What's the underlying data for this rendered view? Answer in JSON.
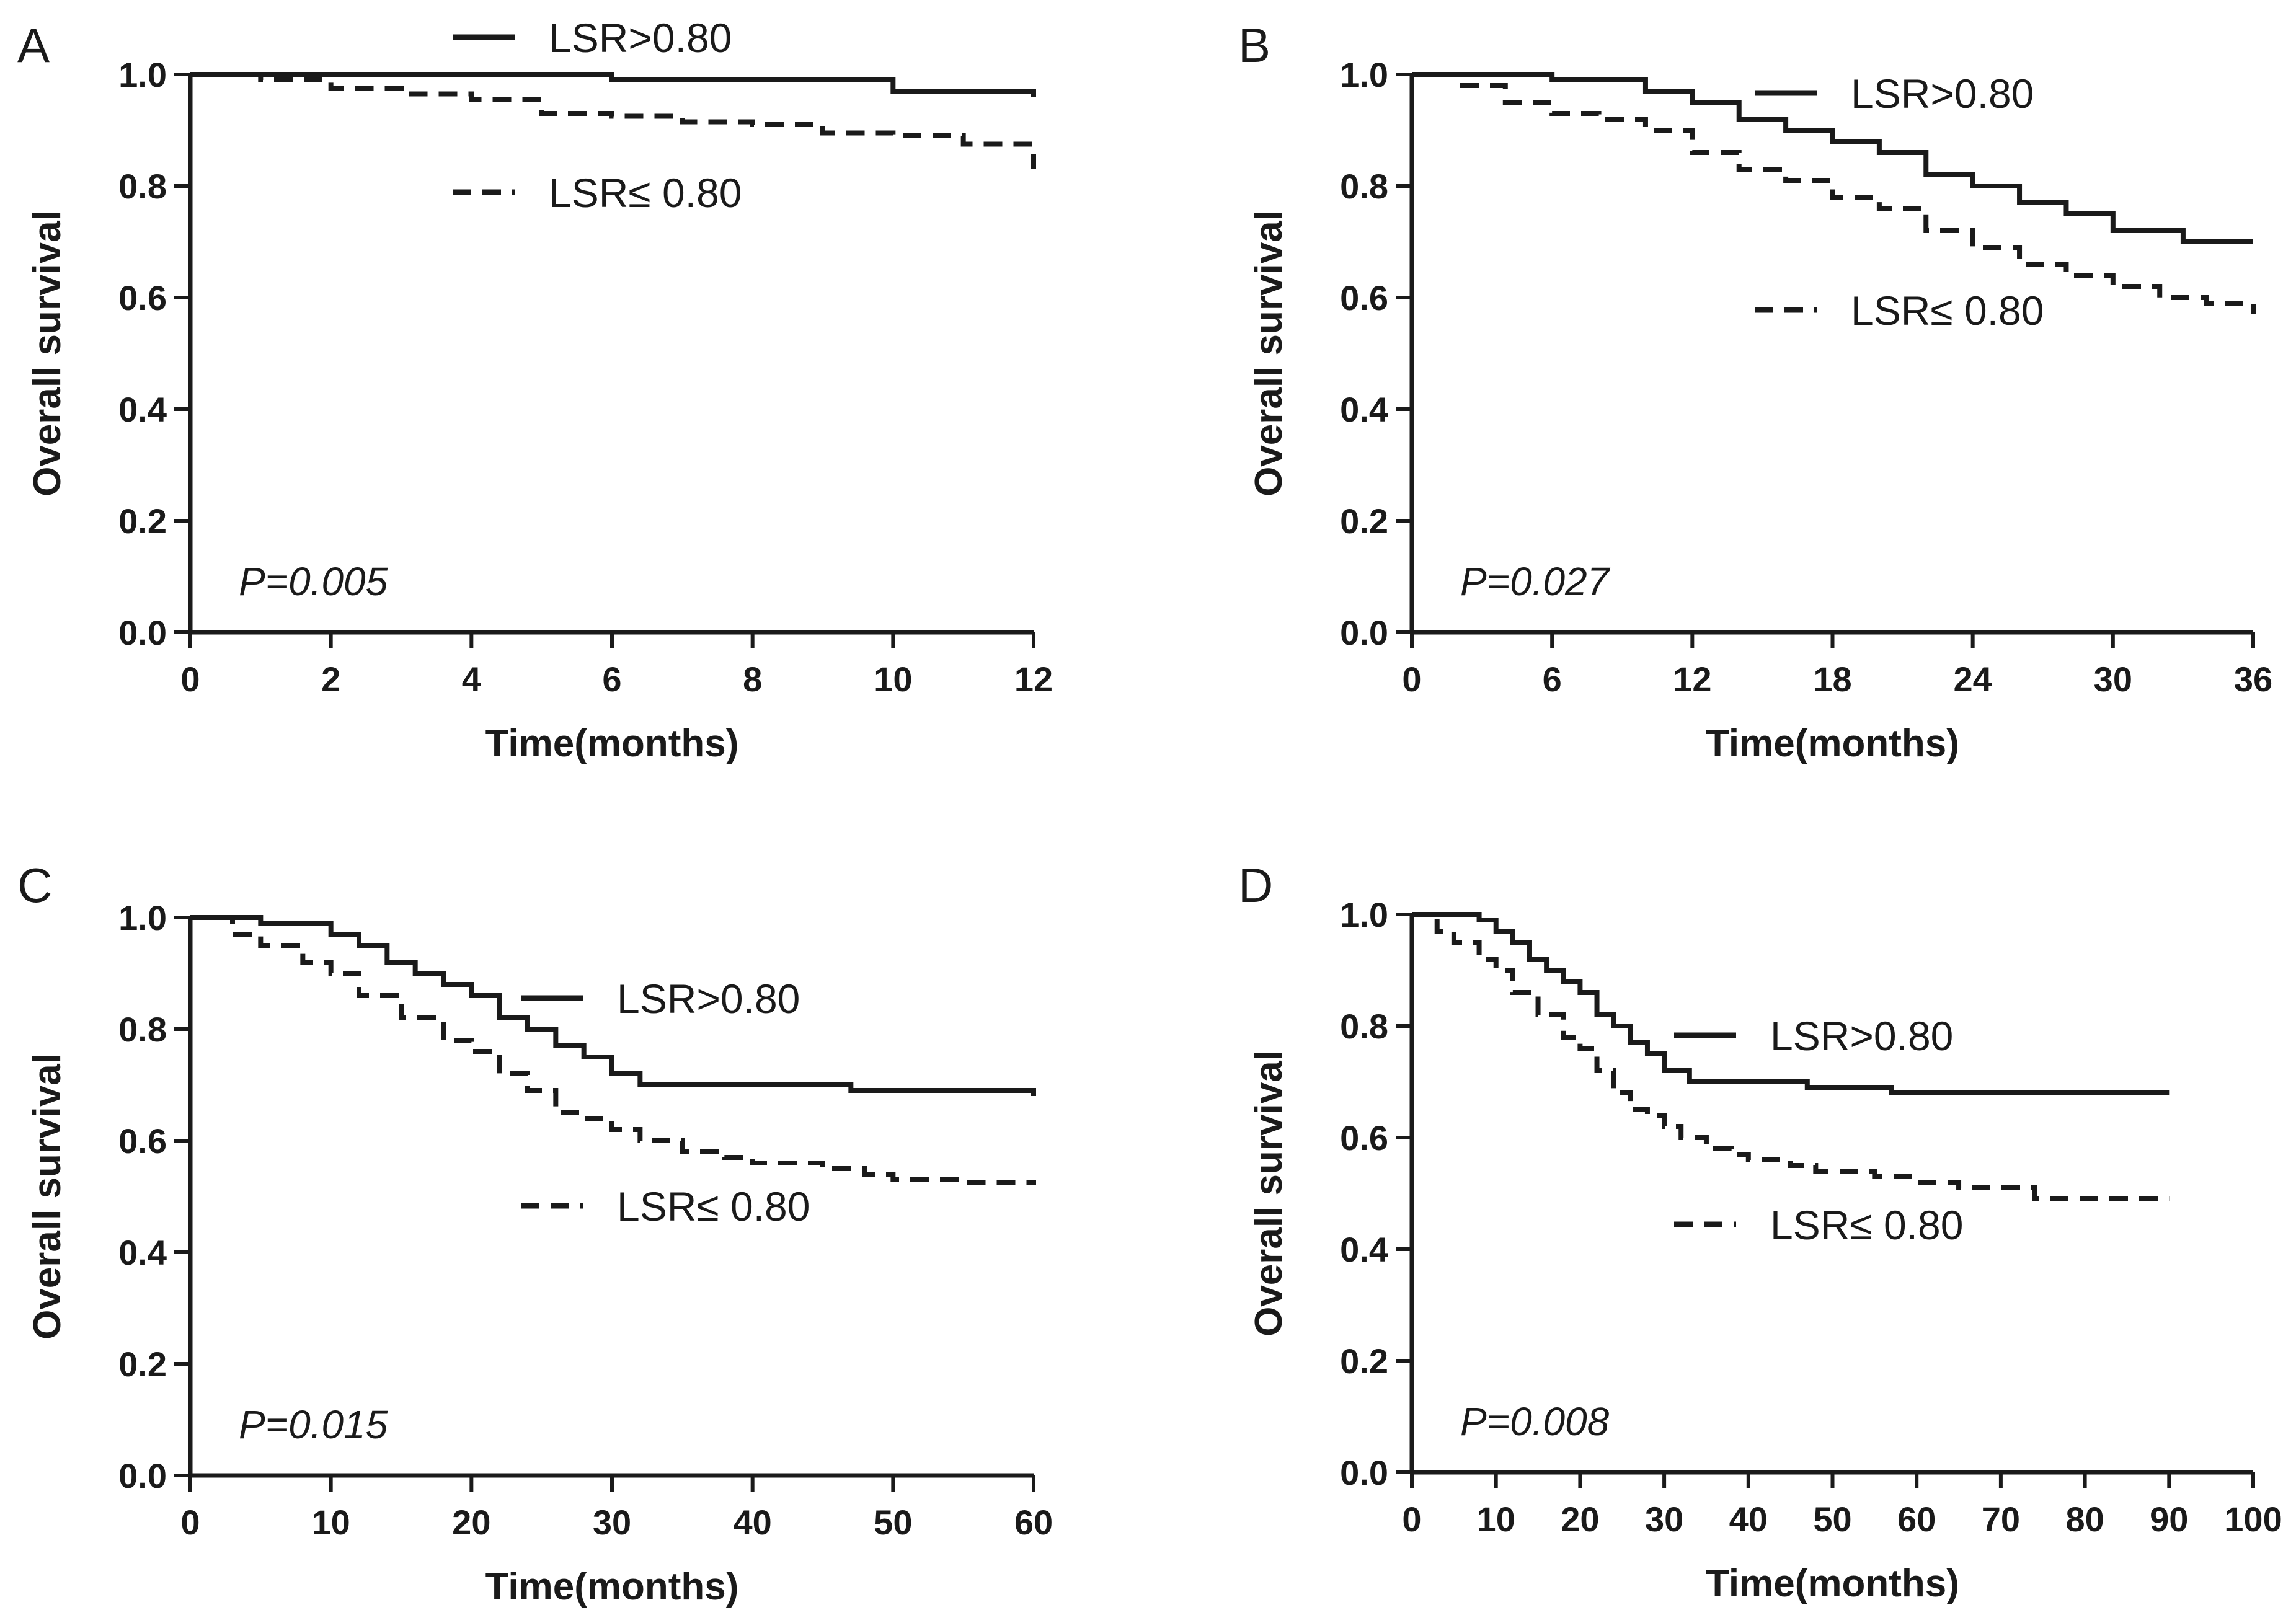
{
  "figure": {
    "colors": {
      "ink": "#1a1a1a",
      "background": "#ffffff"
    }
  },
  "chart_data": [
    {
      "type": "line",
      "panel_label": "A",
      "title": "",
      "xlabel": "Time(months)",
      "ylabel": "Overall survival",
      "xlim": [
        0,
        12
      ],
      "ylim": [
        0,
        1.0
      ],
      "xticks": [
        "0",
        "2",
        "4",
        "6",
        "8",
        "10",
        "12"
      ],
      "yticks": [
        "0.0",
        "0.2",
        "0.4",
        "0.6",
        "0.8",
        "1.0"
      ],
      "p_value": "P=0.005",
      "legend_position": "top-center",
      "series": [
        {
          "name": "LSR>0.80",
          "style": "solid",
          "x": [
            0,
            6,
            10,
            12
          ],
          "y": [
            1.0,
            0.99,
            0.97,
            0.96
          ]
        },
        {
          "name": "LSR≤ 0.80",
          "style": "dashed",
          "x": [
            0,
            1,
            2,
            3,
            4,
            5,
            6,
            7,
            8,
            9,
            10,
            11,
            12
          ],
          "y": [
            1.0,
            0.99,
            0.975,
            0.965,
            0.955,
            0.93,
            0.925,
            0.915,
            0.91,
            0.895,
            0.89,
            0.875,
            0.83
          ]
        }
      ]
    },
    {
      "type": "line",
      "panel_label": "B",
      "title": "",
      "xlabel": "Time(months)",
      "ylabel": "Overall survival",
      "xlim": [
        0,
        36
      ],
      "ylim": [
        0,
        1.0
      ],
      "xticks": [
        "0",
        "6",
        "12",
        "18",
        "24",
        "30",
        "36"
      ],
      "yticks": [
        "0.0",
        "0.2",
        "0.4",
        "0.6",
        "0.8",
        "1.0"
      ],
      "p_value": "P=0.027",
      "legend_position": "top-right",
      "series": [
        {
          "name": "LSR>0.80",
          "style": "solid",
          "x": [
            0,
            6,
            10,
            12,
            14,
            16,
            18,
            20,
            22,
            24,
            26,
            28,
            30,
            33,
            36
          ],
          "y": [
            1.0,
            0.99,
            0.97,
            0.95,
            0.92,
            0.9,
            0.88,
            0.86,
            0.82,
            0.8,
            0.77,
            0.75,
            0.72,
            0.7,
            0.7
          ]
        },
        {
          "name": "LSR≤ 0.80",
          "style": "dashed",
          "x": [
            0,
            2,
            4,
            6,
            8,
            10,
            12,
            14,
            16,
            18,
            20,
            22,
            24,
            26,
            28,
            30,
            32,
            34,
            36
          ],
          "y": [
            1.0,
            0.98,
            0.95,
            0.93,
            0.92,
            0.9,
            0.86,
            0.83,
            0.81,
            0.78,
            0.76,
            0.72,
            0.69,
            0.66,
            0.64,
            0.62,
            0.6,
            0.59,
            0.57
          ]
        }
      ]
    },
    {
      "type": "line",
      "panel_label": "C",
      "title": "",
      "xlabel": "Time(months)",
      "ylabel": "Overall survival",
      "xlim": [
        0,
        60
      ],
      "ylim": [
        0,
        1.0
      ],
      "xticks": [
        "0",
        "10",
        "20",
        "30",
        "40",
        "50",
        "60"
      ],
      "yticks": [
        "0.0",
        "0.2",
        "0.4",
        "0.6",
        "0.8",
        "1.0"
      ],
      "p_value": "P=0.015",
      "legend_position": "center-right",
      "series": [
        {
          "name": "LSR>0.80",
          "style": "solid",
          "x": [
            0,
            5,
            10,
            12,
            14,
            16,
            18,
            20,
            22,
            24,
            26,
            28,
            30,
            32,
            40,
            47,
            55,
            60
          ],
          "y": [
            1.0,
            0.99,
            0.97,
            0.95,
            0.92,
            0.9,
            0.88,
            0.86,
            0.82,
            0.8,
            0.77,
            0.75,
            0.72,
            0.7,
            0.7,
            0.69,
            0.69,
            0.68
          ]
        },
        {
          "name": "LSR≤ 0.80",
          "style": "dashed",
          "x": [
            0,
            3,
            5,
            8,
            10,
            12,
            15,
            18,
            20,
            22,
            24,
            26,
            28,
            30,
            32,
            35,
            38,
            40,
            45,
            48,
            50,
            55,
            60
          ],
          "y": [
            1.0,
            0.97,
            0.95,
            0.92,
            0.9,
            0.86,
            0.82,
            0.78,
            0.76,
            0.72,
            0.69,
            0.65,
            0.64,
            0.62,
            0.6,
            0.58,
            0.57,
            0.56,
            0.55,
            0.54,
            0.53,
            0.525,
            0.52
          ]
        }
      ]
    },
    {
      "type": "line",
      "panel_label": "D",
      "title": "",
      "xlabel": "Time(months)",
      "ylabel": "Overall survival",
      "xlim": [
        0,
        100
      ],
      "ylim": [
        0,
        1.0
      ],
      "xticks": [
        "0",
        "10",
        "20",
        "30",
        "40",
        "50",
        "60",
        "70",
        "80",
        "90",
        "100"
      ],
      "yticks": [
        "0.0",
        "0.2",
        "0.4",
        "0.6",
        "0.8",
        "1.0"
      ],
      "p_value": "P=0.008",
      "legend_position": "center-right",
      "series": [
        {
          "name": "LSR>0.80",
          "style": "solid",
          "x": [
            0,
            8,
            10,
            12,
            14,
            16,
            18,
            20,
            22,
            24,
            26,
            28,
            30,
            33,
            40,
            47,
            57,
            70,
            90
          ],
          "y": [
            1.0,
            0.99,
            0.97,
            0.95,
            0.92,
            0.9,
            0.88,
            0.86,
            0.82,
            0.8,
            0.77,
            0.75,
            0.72,
            0.7,
            0.7,
            0.69,
            0.68,
            0.68,
            0.68
          ]
        },
        {
          "name": "LSR≤ 0.80",
          "style": "dashed",
          "x": [
            0,
            3,
            5,
            8,
            10,
            12,
            15,
            18,
            20,
            22,
            24,
            26,
            28,
            30,
            32,
            35,
            38,
            40,
            45,
            48,
            55,
            60,
            65,
            70,
            74,
            80,
            90
          ],
          "y": [
            1.0,
            0.97,
            0.95,
            0.92,
            0.9,
            0.86,
            0.82,
            0.78,
            0.76,
            0.72,
            0.68,
            0.65,
            0.64,
            0.62,
            0.6,
            0.58,
            0.57,
            0.56,
            0.55,
            0.54,
            0.53,
            0.52,
            0.51,
            0.51,
            0.49,
            0.49,
            0.49
          ]
        }
      ]
    }
  ]
}
